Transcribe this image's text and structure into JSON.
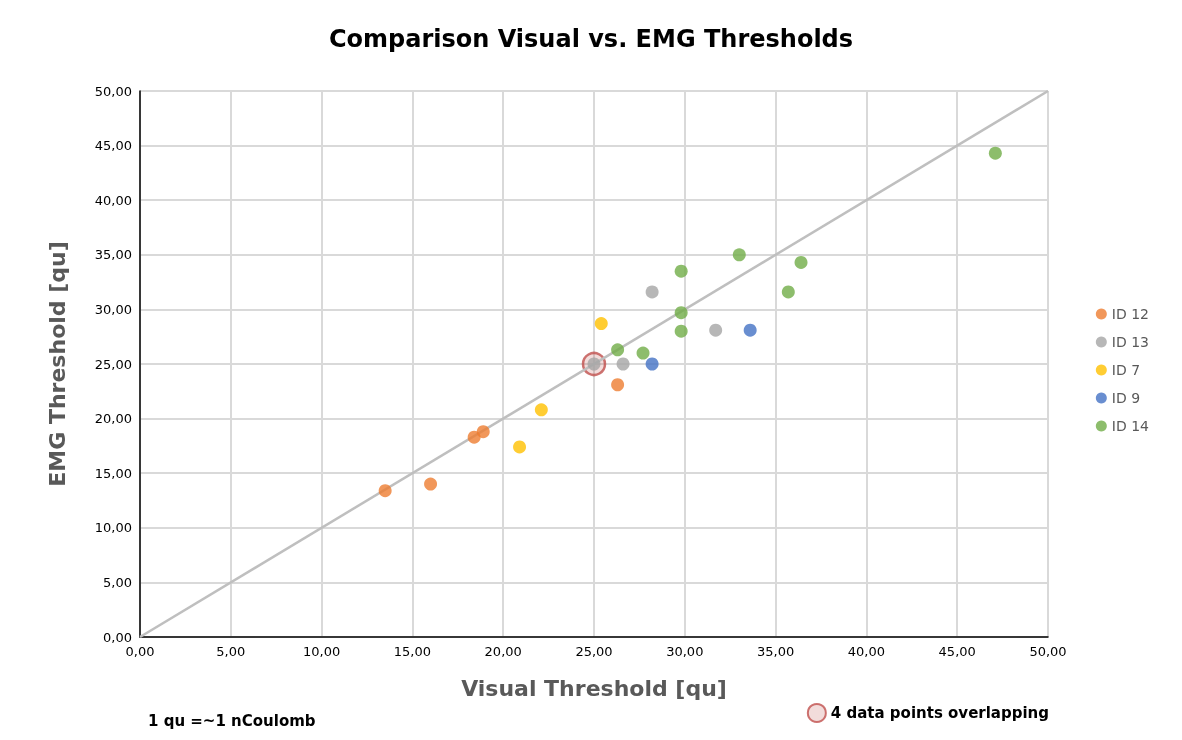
{
  "chart_data": {
    "type": "scatter",
    "title": "Comparison Visual vs. EMG Thresholds",
    "xlabel": "Visual Threshold [qu]",
    "ylabel": "EMG Threshold [qu]",
    "xlim": [
      0,
      50
    ],
    "ylim": [
      0,
      50
    ],
    "xticks": [
      {
        "value": 0,
        "label": "0,00"
      },
      {
        "value": 5,
        "label": "5,00"
      },
      {
        "value": 10,
        "label": "10,00"
      },
      {
        "value": 15,
        "label": "15,00"
      },
      {
        "value": 20,
        "label": "20,00"
      },
      {
        "value": 25,
        "label": "25,00"
      },
      {
        "value": 30,
        "label": "30,00"
      },
      {
        "value": 35,
        "label": "35,00"
      },
      {
        "value": 40,
        "label": "40,00"
      },
      {
        "value": 45,
        "label": "45,00"
      },
      {
        "value": 50,
        "label": "50,00"
      }
    ],
    "yticks": [
      {
        "value": 0,
        "label": "0,00"
      },
      {
        "value": 5,
        "label": "5,00"
      },
      {
        "value": 10,
        "label": "10,00"
      },
      {
        "value": 15,
        "label": "15,00"
      },
      {
        "value": 20,
        "label": "20,00"
      },
      {
        "value": 25,
        "label": "25,00"
      },
      {
        "value": 30,
        "label": "30,00"
      },
      {
        "value": 35,
        "label": "35,00"
      },
      {
        "value": 40,
        "label": "40,00"
      },
      {
        "value": 45,
        "label": "45,00"
      },
      {
        "value": 50,
        "label": "50,00"
      }
    ],
    "grid": true,
    "legend": "right",
    "marker": "circle",
    "series": [
      {
        "type": "line",
        "color": "#bfbfbf",
        "x": [
          0,
          50
        ],
        "values": [
          0,
          50
        ],
        "marker": "none"
      },
      {
        "name": "ID 12",
        "color": "#ed7d31",
        "x": [
          13.5,
          16.0,
          18.4,
          18.9,
          26.3
        ],
        "values": [
          13.4,
          14.0,
          18.3,
          18.8,
          23.1
        ]
      },
      {
        "name": "ID 13",
        "color": "#a5a5a5",
        "x": [
          26.6,
          28.2,
          31.7,
          25.0
        ],
        "values": [
          25.0,
          31.6,
          28.1,
          25.0
        ]
      },
      {
        "name": "ID 7",
        "color": "#ffc000",
        "x": [
          25.4,
          22.1,
          20.9
        ],
        "values": [
          28.7,
          20.8,
          17.4
        ]
      },
      {
        "name": "ID 9",
        "color": "#4472c4",
        "x": [
          28.2,
          33.6
        ],
        "values": [
          25.0,
          28.1
        ]
      },
      {
        "name": "ID 14",
        "color": "#70ad47",
        "x": [
          26.3,
          27.7,
          29.8,
          29.8,
          29.8,
          33.0,
          36.4,
          35.7,
          47.1
        ],
        "values": [
          26.3,
          26.0,
          33.5,
          29.7,
          28.0,
          35.0,
          34.3,
          31.6,
          44.3
        ]
      },
      {
        "name": "4 data points overlapping",
        "color": "#c0504d",
        "x": [
          25
        ],
        "values": [
          25
        ],
        "type": "bubble",
        "sizes": [
          1
        ]
      }
    ],
    "annotations": [
      "1 qu =~1 nCoulomb"
    ]
  }
}
